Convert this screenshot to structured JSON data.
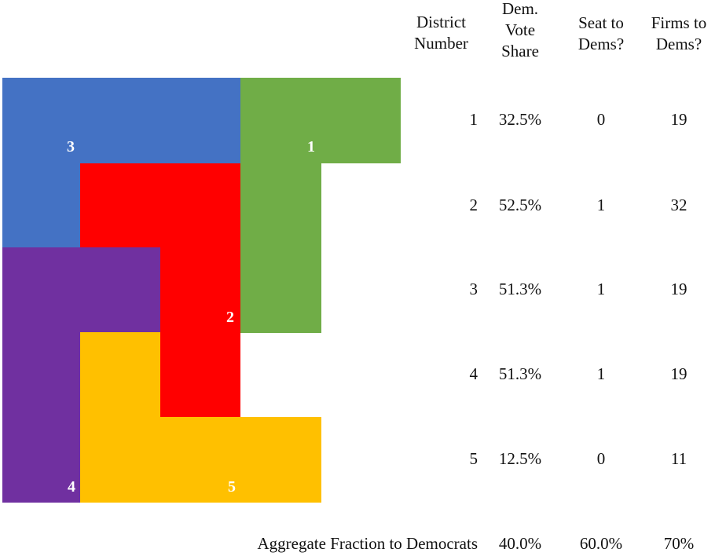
{
  "colors": {
    "district_1": "#70AD47",
    "district_2": "#FF0000",
    "district_3": "#4472C4",
    "district_4": "#7030A0",
    "district_5": "#FFC000"
  },
  "map_labels": [
    "3",
    "1",
    "2",
    "4",
    "5"
  ],
  "table": {
    "headers": {
      "district": [
        "District",
        "Number"
      ],
      "share": [
        "Dem.",
        "Vote",
        "Share"
      ],
      "seat": [
        "Seat to",
        "Dems?"
      ],
      "firms": [
        "Firms to",
        "Dems?"
      ]
    },
    "rows": [
      {
        "district": "1",
        "share": "32.5%",
        "seat": "0",
        "firms": "19"
      },
      {
        "district": "2",
        "share": "52.5%",
        "seat": "1",
        "firms": "32"
      },
      {
        "district": "3",
        "share": "51.3%",
        "seat": "1",
        "firms": "19"
      },
      {
        "district": "4",
        "share": "51.3%",
        "seat": "1",
        "firms": "19"
      },
      {
        "district": "5",
        "share": "12.5%",
        "seat": "0",
        "firms": "11"
      }
    ],
    "aggregate": {
      "label": "Aggregate Fraction to Democrats",
      "share": "40.0%",
      "seat": "60.0%",
      "firms": "70%"
    }
  }
}
